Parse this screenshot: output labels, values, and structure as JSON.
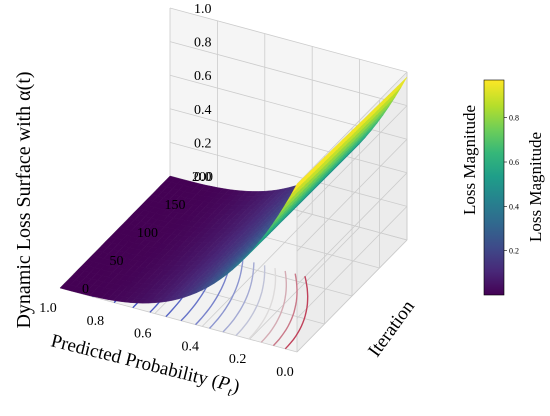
{
  "chart_data": {
    "type": "surface3d",
    "title": "",
    "z_axis_title": "Dynamic Loss Surface with α(t)",
    "x_axis": {
      "label_prefix": "Predicted Probability ",
      "label_symbol": "P",
      "label_sub": "t",
      "ticks": [
        "0.0",
        "0.2",
        "0.4",
        "0.6",
        "0.8",
        "1.0"
      ],
      "range": [
        0,
        1
      ]
    },
    "y_axis": {
      "label": "Iteration",
      "ticks": [
        "0",
        "50",
        "100",
        "150",
        "200"
      ],
      "range": [
        0,
        200
      ]
    },
    "z_axis": {
      "label": "Loss Magnitude",
      "ticks": [
        "0.0",
        "0.2",
        "0.4",
        "0.6",
        "0.8",
        "1.0"
      ],
      "range": [
        0,
        1
      ]
    },
    "colorbar": {
      "label": "Loss Magnitude",
      "ticks": [
        "0.2",
        "0.4",
        "0.6",
        "0.8"
      ],
      "range": [
        0,
        0.97
      ],
      "colormap": "viridis"
    },
    "surface_function": "z = (1 - p)^3, nearly constant along iteration",
    "surface_samples": {
      "p": [
        0.0,
        0.1,
        0.2,
        0.3,
        0.4,
        0.5,
        0.6,
        0.7,
        0.8,
        0.9,
        1.0
      ],
      "z": [
        1.0,
        0.73,
        0.51,
        0.34,
        0.22,
        0.13,
        0.06,
        0.03,
        0.01,
        0.0,
        0.0
      ]
    },
    "contour_projection": {
      "plane": "z=0",
      "cmap": "coolwarm",
      "levels": 14
    },
    "grid": true,
    "colors": {
      "grid_pane": "#f2f2f2",
      "grid_line": "#cccccc",
      "viridis": [
        "#440154",
        "#482878",
        "#3e4a89",
        "#31688e",
        "#26828e",
        "#1f9e89",
        "#35b779",
        "#6ece58",
        "#b5de2b",
        "#fde725"
      ]
    }
  }
}
